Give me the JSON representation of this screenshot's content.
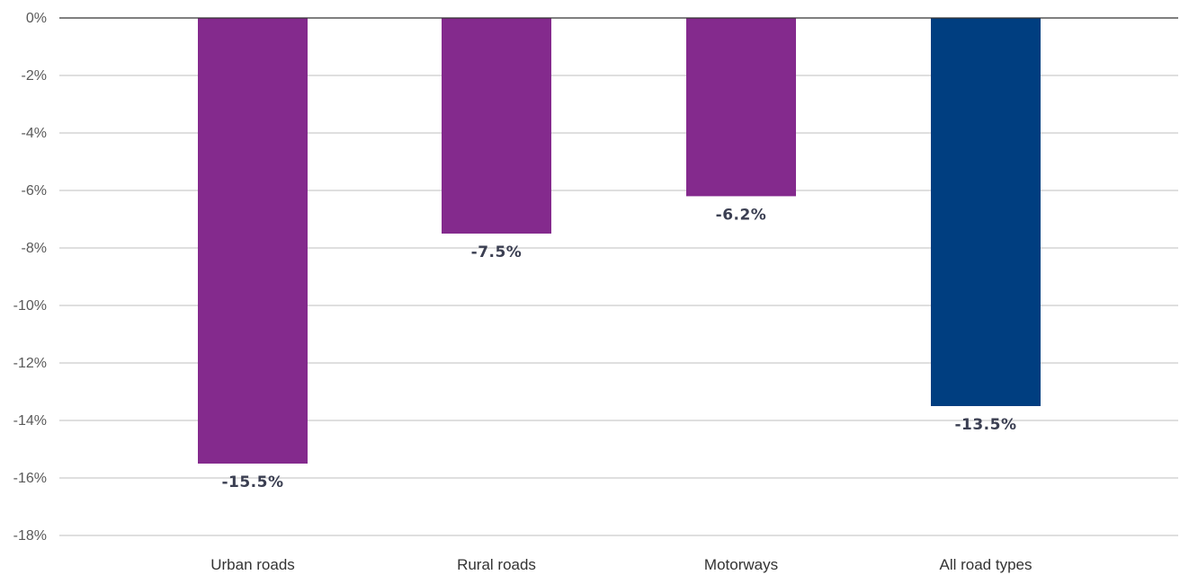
{
  "chart_data": {
    "type": "bar",
    "categories": [
      "Urban roads",
      "Rural roads",
      "Motorways",
      "All road types"
    ],
    "series": [
      {
        "values": [
          -15.5,
          -7.5,
          -6.2,
          -13.5
        ],
        "colors": [
          "#842a8d",
          "#842a8d",
          "#842a8d",
          "#003e80"
        ]
      }
    ],
    "data_labels": [
      "-15.5%",
      "-7.5%",
      "-6.2%",
      "-13.5%"
    ],
    "ylim": [
      -18,
      0
    ],
    "yticks": [
      0,
      -2,
      -4,
      -6,
      -8,
      -10,
      -12,
      -14,
      -16,
      -18
    ],
    "ytick_labels": [
      "0%",
      "-2%",
      "-4%",
      "-6%",
      "-8%",
      "-10%",
      "-12%",
      "-14%",
      "-16%",
      "-18%"
    ],
    "grid": true,
    "title": "",
    "xlabel": "",
    "ylabel": ""
  }
}
